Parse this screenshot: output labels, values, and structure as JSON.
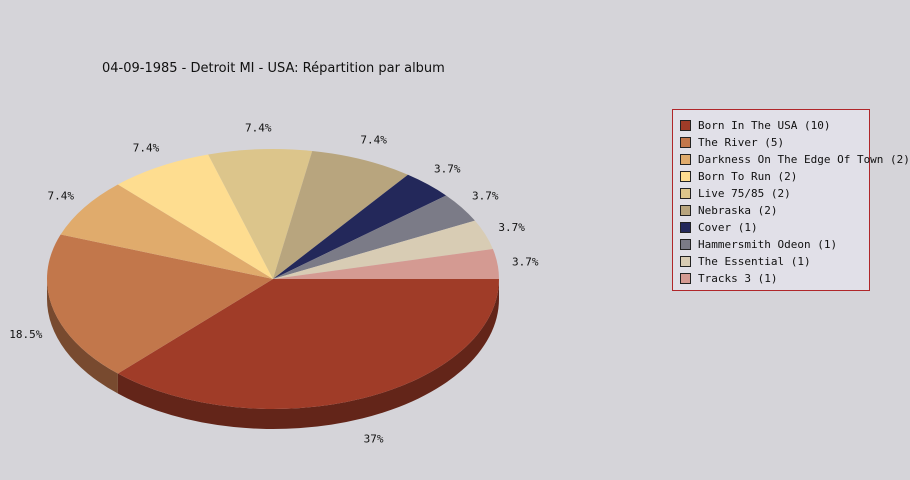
{
  "chart_data": {
    "type": "pie",
    "title": "04-09-1985 - Detroit MI - USA:  Répartition par album",
    "legend_position": "right",
    "slices": [
      {
        "name": "Born In The USA (10)",
        "value": 10,
        "label": "37%",
        "color": "#a03c28"
      },
      {
        "name": "The River (5)",
        "value": 5,
        "label": "18.5%",
        "color": "#c2774b"
      },
      {
        "name": "Darkness On The Edge Of Town (2)",
        "value": 2,
        "label": "7.4%",
        "color": "#e0ab6c"
      },
      {
        "name": "Born To Run (2)",
        "value": 2,
        "label": "7.4%",
        "color": "#fedd90"
      },
      {
        "name": "Live 75/85 (2)",
        "value": 2,
        "label": "7.4%",
        "color": "#dcc58b"
      },
      {
        "name": "Nebraska (2)",
        "value": 2,
        "label": "7.4%",
        "color": "#b8a57e"
      },
      {
        "name": "Cover (1)",
        "value": 1,
        "label": "3.7%",
        "color": "#23285a"
      },
      {
        "name": "Hammersmith Odeon  (1)",
        "value": 1,
        "label": "3.7%",
        "color": "#7b7b87"
      },
      {
        "name": "The Essential (1)",
        "value": 1,
        "label": "3.7%",
        "color": "#d8ccb4"
      },
      {
        "name": "Tracks 3 (1)",
        "value": 1,
        "label": "3.7%",
        "color": "#d49a92"
      }
    ]
  }
}
